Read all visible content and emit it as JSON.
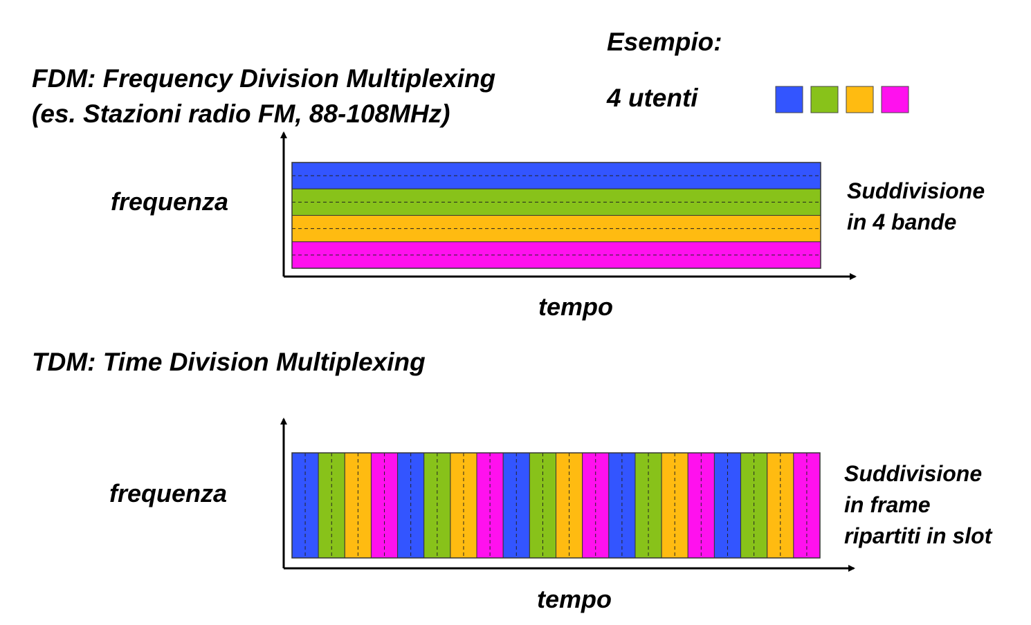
{
  "header": {
    "example_label": "Esempio:",
    "users_label": "4 utenti"
  },
  "fdm": {
    "title_line1": "FDM: Frequency Division Multiplexing",
    "title_line2": "(es. Stazioni radio FM, 88-108MHz)",
    "y_label": "frequenza",
    "x_label": "tempo",
    "note_line1": "Suddivisione",
    "note_line2": "in 4 bande"
  },
  "tdm": {
    "title": "TDM: Time Division Multiplexing",
    "y_label": "frequenza",
    "x_label": "tempo",
    "note_line1": "Suddivisione",
    "note_line2": "in frame",
    "note_line3": "ripartiti in slot",
    "frames": 5
  },
  "users": [
    {
      "color": "#3355ff"
    },
    {
      "color": "#88c21a"
    },
    {
      "color": "#ffbb11"
    },
    {
      "color": "#ff11ee"
    }
  ]
}
